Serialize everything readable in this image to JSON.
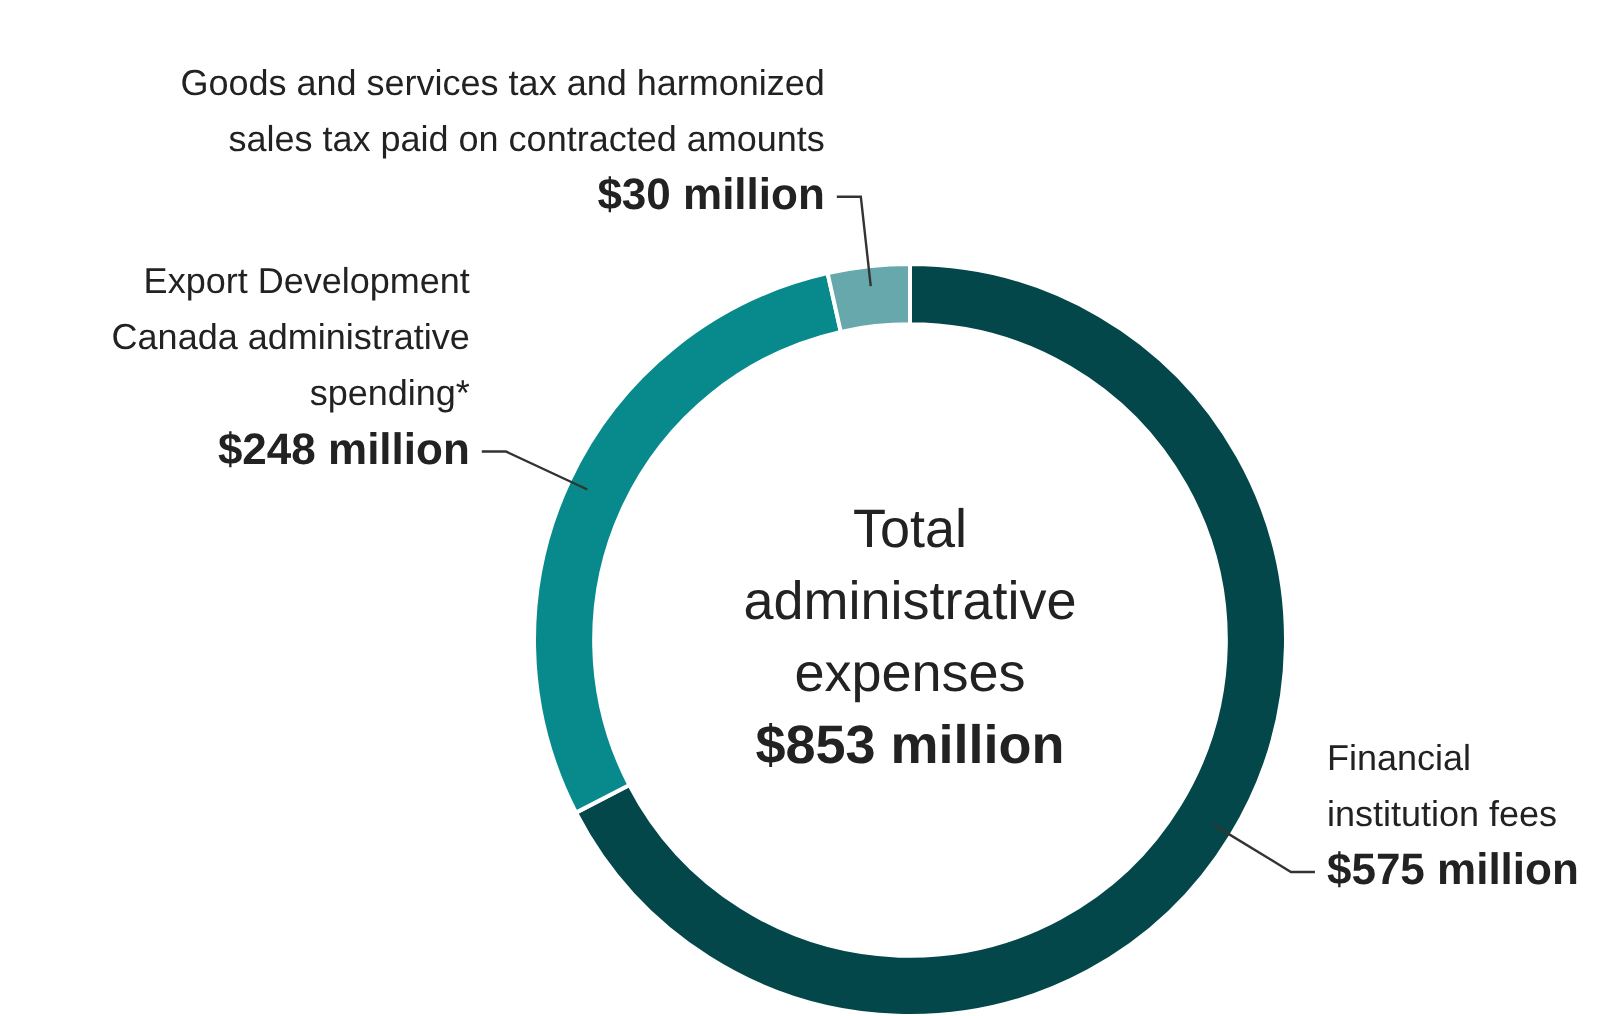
{
  "chart_data": {
    "type": "donut",
    "categories": [
      "Financial institution fees",
      "Export Development Canada administrative spending*",
      "Goods and services tax and harmonized sales tax paid on contracted amounts"
    ],
    "values": [
      575,
      248,
      30
    ],
    "value_labels": [
      "$575 million",
      "$248 million",
      "$30 million"
    ],
    "colors": [
      "#03474b",
      "#088a8c",
      "#66a8ab"
    ],
    "annotations": [
      "Total administrative expenses",
      "$853 million"
    ],
    "legend": false
  }
}
